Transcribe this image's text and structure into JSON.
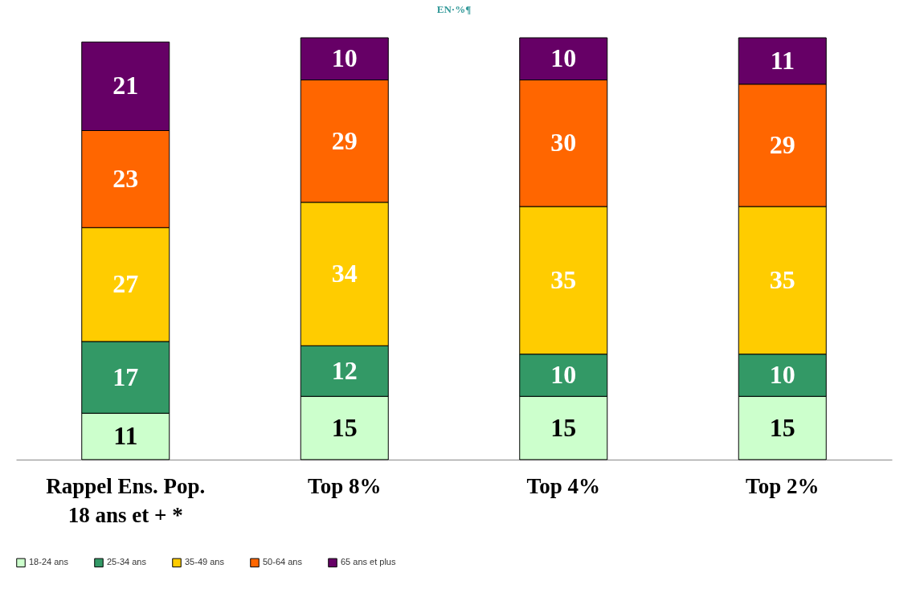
{
  "chart_data": {
    "type": "bar",
    "title": "EN·%¶",
    "stacked": true,
    "data_labels": true,
    "legend": "bottom",
    "categories": [
      "Rappel Ens. Pop. 18 ans et + *",
      "Top 8%",
      "Top 4%",
      "Top 2%"
    ],
    "series": [
      {
        "name": "18-24 ans",
        "color": "#ccffcc",
        "values": [
          11,
          15,
          15,
          15
        ]
      },
      {
        "name": "25-34 ans",
        "color": "#339966",
        "values": [
          17,
          12,
          10,
          10
        ]
      },
      {
        "name": "35-49 ans",
        "color": "#ffcc00",
        "values": [
          27,
          34,
          35,
          35
        ]
      },
      {
        "name": "50-64 ans",
        "color": "#ff6600",
        "values": [
          23,
          29,
          30,
          29
        ]
      },
      {
        "name": "65 ans et plus",
        "color": "#660066",
        "values": [
          21,
          10,
          10,
          11
        ]
      }
    ]
  }
}
